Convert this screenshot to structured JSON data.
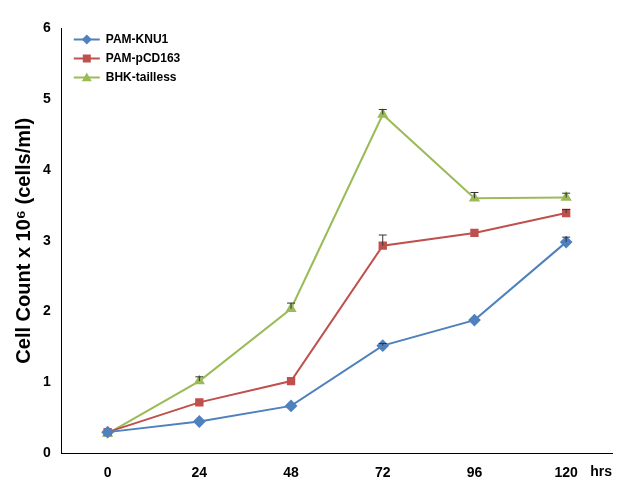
{
  "chart_data": {
    "type": "line",
    "ylabel": "Cell Count x 10⁶ (cells/ml)",
    "xlabel": "hrs",
    "categories": [
      "0",
      "24",
      "48",
      "72",
      "96",
      "120"
    ],
    "series": [
      {
        "name": "PAM-KNU1",
        "color": "#4F81BD",
        "marker": "diamond",
        "values": [
          0.3,
          0.45,
          0.67,
          1.52,
          1.88,
          2.98
        ],
        "errors": [
          0,
          0,
          0,
          0.03,
          0,
          0.07
        ]
      },
      {
        "name": "PAM-pCD163",
        "color": "#C0504D",
        "marker": "square",
        "values": [
          0.3,
          0.72,
          1.02,
          2.93,
          3.11,
          3.39
        ],
        "errors": [
          0,
          0,
          0,
          0.15,
          0,
          0.05
        ]
      },
      {
        "name": "BHK-tailless",
        "color": "#9BBB59",
        "marker": "triangle",
        "values": [
          0.28,
          1.02,
          2.04,
          4.78,
          3.6,
          3.61
        ],
        "errors": [
          0,
          0.06,
          0.08,
          0.07,
          0.08,
          0.06
        ]
      }
    ],
    "ylim": [
      0,
      6
    ],
    "yticks": [
      0,
      1,
      2,
      3,
      4,
      5,
      6
    ],
    "grid": false,
    "legend": "upper left"
  }
}
